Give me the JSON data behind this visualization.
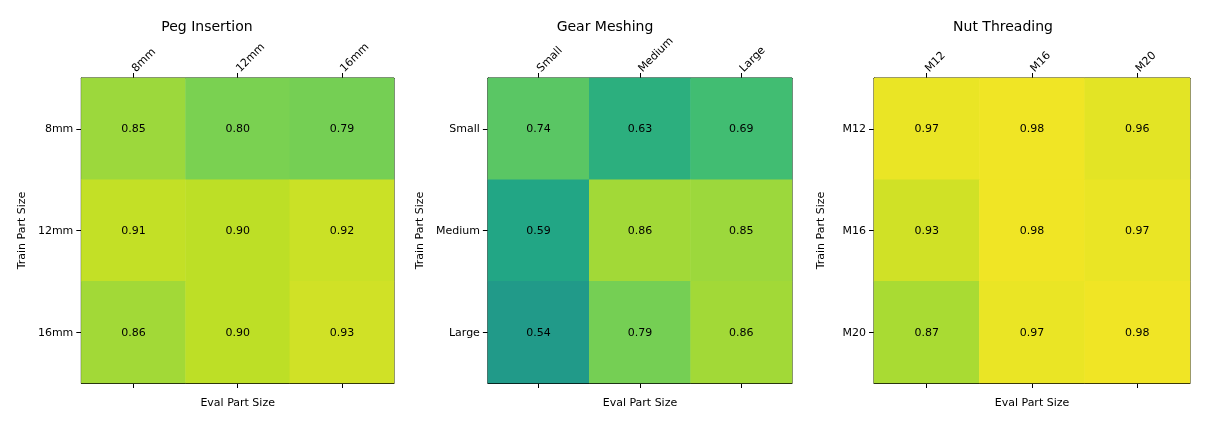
{
  "chart_data": [
    {
      "type": "heatmap",
      "title": "Peg Insertion",
      "xlabel": "Eval Part Size",
      "ylabel": "Train Part Size",
      "categories": [
        "8mm",
        "12mm",
        "16mm"
      ],
      "y_categories": [
        "8mm",
        "12mm",
        "16mm"
      ],
      "cells": [
        [
          0.85,
          0.8,
          0.79
        ],
        [
          0.91,
          0.9,
          0.92
        ],
        [
          0.86,
          0.9,
          0.93
        ]
      ],
      "cell_labels": [
        [
          "0.85",
          "0.80",
          "0.79"
        ],
        [
          "0.91",
          "0.90",
          "0.92"
        ],
        [
          "0.86",
          "0.90",
          "0.93"
        ]
      ]
    },
    {
      "type": "heatmap",
      "title": "Gear Meshing",
      "xlabel": "Eval Part Size",
      "ylabel": "Train Part Size",
      "categories": [
        "Small",
        "Medium",
        "Large"
      ],
      "y_categories": [
        "Small",
        "Medium",
        "Large"
      ],
      "cells": [
        [
          0.74,
          0.63,
          0.69
        ],
        [
          0.59,
          0.86,
          0.85
        ],
        [
          0.54,
          0.79,
          0.86
        ]
      ],
      "cell_labels": [
        [
          "0.74",
          "0.63",
          "0.69"
        ],
        [
          "0.59",
          "0.86",
          "0.85"
        ],
        [
          "0.54",
          "0.79",
          "0.86"
        ]
      ]
    },
    {
      "type": "heatmap",
      "title": "Nut Threading",
      "xlabel": "Eval Part Size",
      "ylabel": "Train Part Size",
      "categories": [
        "M12",
        "M16",
        "M20"
      ],
      "y_categories": [
        "M12",
        "M16",
        "M20"
      ],
      "cells": [
        [
          0.97,
          0.98,
          0.96
        ],
        [
          0.93,
          0.98,
          0.97
        ],
        [
          0.87,
          0.97,
          0.98
        ]
      ],
      "cell_labels": [
        [
          "0.97",
          "0.98",
          "0.96"
        ],
        [
          "0.93",
          "0.98",
          "0.97"
        ],
        [
          "0.87",
          "0.97",
          "0.98"
        ]
      ]
    }
  ]
}
